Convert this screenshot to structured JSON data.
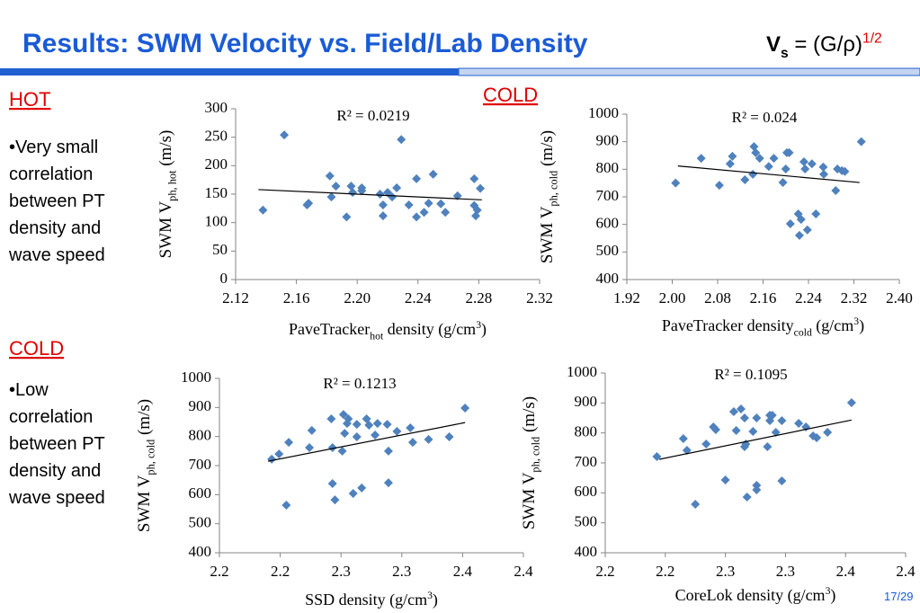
{
  "header": {
    "title": "Results: SWM Velocity vs. Field/Lab Density",
    "formula": [
      {
        "text": "V"
      },
      {
        "text": "s",
        "shift": "sub"
      },
      {
        "text": " = (G/ρ)"
      },
      {
        "text": "1/2",
        "shift": "super"
      }
    ]
  },
  "sections": [
    {
      "heading": "HOT",
      "bullet": [
        "•Very small",
        "correlation",
        "between PT",
        "density and",
        "wave speed"
      ]
    },
    {
      "heading": "COLD"
    },
    {
      "heading": "COLD",
      "bullet": [
        "•Low",
        "correlation",
        "between PT",
        "density and",
        "wave speed"
      ]
    }
  ],
  "page_number": "17/29",
  "chart_data": [
    {
      "type": "scatter",
      "color": "#4f81bd",
      "annotation": "R² = 0.0219",
      "xlabel": [
        {
          "text": "PaveTracker"
        },
        {
          "text": "hot",
          "shift": "sub"
        },
        {
          "text": " density (g/cm"
        },
        {
          "text": "3",
          "shift": "super"
        },
        {
          "text": ")"
        }
      ],
      "ylabel": [
        {
          "text": "SWM V"
        },
        {
          "text": "ph, hot",
          "shift": "sub"
        },
        {
          "text": " (m/s)"
        }
      ],
      "xlim": [
        2.12,
        2.32
      ],
      "xticks": [
        2.12,
        2.16,
        {
          "value": 2.2,
          "label": "2.20"
        },
        2.24,
        2.28,
        2.32
      ],
      "ylim": [
        0,
        300
      ],
      "yticks": [
        0,
        50,
        100,
        150,
        200,
        250,
        300
      ],
      "x": [
        2.138,
        2.152,
        2.167,
        2.168,
        2.182,
        2.183,
        2.186,
        2.193,
        2.196,
        2.197,
        2.203,
        2.203,
        2.215,
        2.217,
        2.217,
        2.22,
        2.223,
        2.226,
        2.229,
        2.234,
        2.239,
        2.239,
        2.244,
        2.247,
        2.25,
        2.255,
        2.258,
        2.266,
        2.277,
        2.277,
        2.278,
        2.279,
        2.281
      ],
      "values": [
        122,
        254,
        131,
        134,
        182,
        145,
        164,
        110,
        164,
        153,
        161,
        156,
        150,
        112,
        131,
        153,
        145,
        161,
        246,
        131,
        177,
        110,
        118,
        134,
        185,
        133,
        118,
        147,
        177,
        130,
        112,
        122,
        160
      ],
      "trendline": {
        "x": [
          2.135,
          2.282
        ],
        "values": [
          158,
          140
        ]
      }
    },
    {
      "type": "scatter",
      "color": "#4f81bd",
      "annotation": "R² = 0.024",
      "xlabel": [
        {
          "text": "PaveTracker density"
        },
        {
          "text": "cold",
          "shift": "sub"
        },
        {
          "text": " (g/cm"
        },
        {
          "text": "3",
          "shift": "super"
        },
        {
          "text": ")"
        }
      ],
      "ylabel": [
        {
          "text": "SWM V"
        },
        {
          "text": "ph, cold",
          "shift": "sub"
        },
        {
          "text": " (m/s)"
        }
      ],
      "xlim": [
        1.92,
        2.4
      ],
      "xticks": [
        1.92,
        {
          "value": 2,
          "label": "2.00"
        },
        2.08,
        2.16,
        2.24,
        2.32,
        {
          "value": 2.4,
          "label": "2.40"
        }
      ],
      "ylim": [
        400,
        1000
      ],
      "yticks": [
        400,
        500,
        600,
        700,
        800,
        900,
        1000
      ],
      "x": [
        2.006,
        2.051,
        2.083,
        2.106,
        2.102,
        2.128,
        2.142,
        2.144,
        2.147,
        2.154,
        2.17,
        2.179,
        2.195,
        2.2,
        2.202,
        2.206,
        2.208,
        2.222,
        2.224,
        2.227,
        2.232,
        2.234,
        2.238,
        2.246,
        2.253,
        2.266,
        2.267,
        2.288,
        2.291,
        2.299,
        2.304,
        2.333
      ],
      "values": [
        750,
        840,
        742,
        847,
        820,
        762,
        782,
        882,
        860,
        840,
        810,
        840,
        752,
        801,
        860,
        860,
        602,
        638,
        560,
        618,
        827,
        801,
        580,
        820,
        638,
        808,
        782,
        723,
        801,
        795,
        792,
        900
      ],
      "trendline": {
        "x": [
          2.01,
          2.33
        ],
        "values": [
          812,
          752
        ]
      }
    },
    {
      "type": "scatter",
      "color": "#4f81bd",
      "annotation": "R² = 0.1213",
      "xlabel": [
        {
          "text": "SSD density (g/cm"
        },
        {
          "text": "3",
          "shift": "super"
        },
        {
          "text": ")"
        }
      ],
      "ylabel": [
        {
          "text": "SWM V"
        },
        {
          "text": "ph, cold",
          "shift": "sub"
        },
        {
          "text": " (m/s)"
        }
      ],
      "xlim": [
        2.15,
        2.4
      ],
      "xticks": [
        {
          "value": 2.15,
          "label": "2.2"
        },
        2.2,
        {
          "value": 2.25,
          "label": "2.3"
        },
        2.3,
        {
          "value": 2.35,
          "label": "2.4"
        },
        2.4
      ],
      "ylim": [
        400,
        1000
      ],
      "yticks": [
        400,
        500,
        600,
        700,
        800,
        900,
        1000
      ],
      "x": [
        2.193,
        2.199,
        2.207,
        2.205,
        2.224,
        2.226,
        2.242,
        2.243,
        2.245,
        2.243,
        2.252,
        2.255,
        2.256,
        2.251,
        2.253,
        2.26,
        2.263,
        2.267,
        2.263,
        2.271,
        2.273,
        2.278,
        2.28,
        2.288,
        2.289,
        2.289,
        2.296,
        2.307,
        2.309,
        2.322,
        2.339,
        2.352
      ],
      "values": [
        722,
        740,
        780,
        564,
        762,
        821,
        861,
        638,
        582,
        762,
        876,
        845,
        861,
        750,
        811,
        604,
        799,
        623,
        842,
        861,
        839,
        805,
        845,
        842,
        750,
        641,
        818,
        830,
        780,
        790,
        799,
        898
      ],
      "trendline": {
        "x": [
          2.19,
          2.352
        ],
        "values": [
          715,
          848
        ]
      }
    },
    {
      "type": "scatter",
      "color": "#4f81bd",
      "annotation": "R² = 0.1095",
      "xlabel": [
        {
          "text": "CoreLok density (g/cm"
        },
        {
          "text": "3",
          "shift": "super"
        },
        {
          "text": ")"
        }
      ],
      "ylabel": [
        {
          "text": "SWM V"
        },
        {
          "text": "ph, cold",
          "shift": "sub"
        },
        {
          "text": " (m/s)"
        }
      ],
      "xlim": [
        2.15,
        2.4
      ],
      "xticks": [
        {
          "value": 2.15,
          "label": "2.2"
        },
        2.2,
        {
          "value": 2.25,
          "label": "2.3"
        },
        2.3,
        {
          "value": 2.35,
          "label": "2.4"
        },
        2.4
      ],
      "ylim": [
        400,
        1000
      ],
      "yticks": [
        400,
        500,
        600,
        700,
        800,
        900,
        1000
      ],
      "x": [
        2.193,
        2.215,
        2.218,
        2.225,
        2.234,
        2.24,
        2.242,
        2.25,
        2.257,
        2.259,
        2.263,
        2.266,
        2.266,
        2.267,
        2.268,
        2.273,
        2.276,
        2.276,
        2.276,
        2.285,
        2.287,
        2.287,
        2.289,
        2.292,
        2.297,
        2.297,
        2.311,
        2.317,
        2.323,
        2.326,
        2.335,
        2.355
      ],
      "values": [
        721,
        781,
        742,
        562,
        763,
        820,
        811,
        643,
        871,
        808,
        880,
        850,
        754,
        763,
        586,
        805,
        610,
        625,
        850,
        754,
        859,
        841,
        859,
        802,
        640,
        841,
        832,
        820,
        790,
        784,
        802,
        901
      ],
      "trendline": {
        "x": [
          2.195,
          2.355
        ],
        "values": [
          712,
          843
        ]
      }
    }
  ]
}
